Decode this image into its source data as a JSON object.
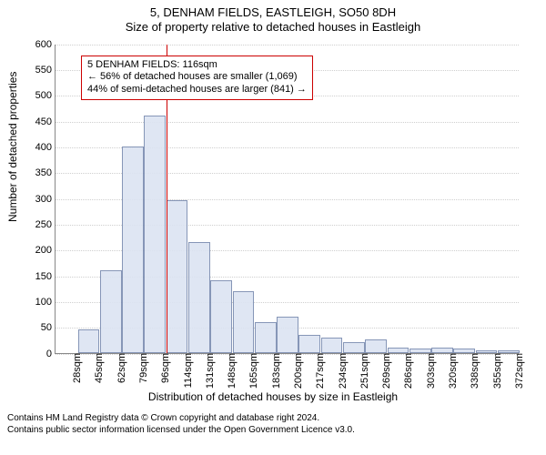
{
  "header": {
    "line1": "5, DENHAM FIELDS, EASTLEIGH, SO50 8DH",
    "line2": "Size of property relative to detached houses in Eastleigh"
  },
  "chart": {
    "type": "histogram",
    "y_axis_title": "Number of detached properties",
    "x_axis_title": "Distribution of detached houses by size in Eastleigh",
    "ylim": [
      0,
      600
    ],
    "ytick_step": 50,
    "x_categories": [
      "28sqm",
      "45sqm",
      "62sqm",
      "79sqm",
      "96sqm",
      "114sqm",
      "131sqm",
      "148sqm",
      "165sqm",
      "183sqm",
      "200sqm",
      "217sqm",
      "234sqm",
      "251sqm",
      "269sqm",
      "286sqm",
      "303sqm",
      "320sqm",
      "338sqm",
      "355sqm",
      "372sqm"
    ],
    "values": [
      0,
      45,
      160,
      400,
      460,
      295,
      215,
      140,
      120,
      60,
      70,
      35,
      30,
      20,
      25,
      10,
      8,
      10,
      8,
      5,
      5
    ],
    "bar_fill": "#dce4f2",
    "bar_border": "#7a8bb0",
    "bar_opacity": 0.9,
    "grid_color": "#cfcfcf",
    "axis_color": "#888888",
    "background_color": "#ffffff",
    "label_fontsize": 11,
    "axis_title_fontsize": 12,
    "reference": {
      "category_index": 5,
      "line_color": "#cc0000",
      "line_width": 1
    },
    "callout": {
      "border_color": "#cc0000",
      "lines": [
        "5 DENHAM FIELDS: 116sqm",
        "← 56% of detached houses are smaller (1,069)",
        "44% of semi-detached houses are larger (841) →"
      ]
    }
  },
  "footer": {
    "line1": "Contains HM Land Registry data © Crown copyright and database right 2024.",
    "line2": "Contains public sector information licensed under the Open Government Licence v3.0."
  }
}
